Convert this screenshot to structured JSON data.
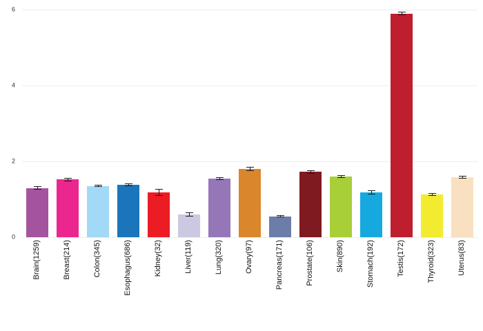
{
  "chart_data": {
    "type": "bar",
    "title": "",
    "xlabel": "",
    "ylabel": "",
    "ylim": [
      0,
      6
    ],
    "yticks": [
      0,
      2,
      4,
      6
    ],
    "grid": true,
    "legend": false,
    "error_bars": true,
    "error_color": "#1a1a1a",
    "categories": [
      "Brain(1259)",
      "Breast(214)",
      "Colon(345)",
      "Esophagus(686)",
      "Kidney(32)",
      "Liver(119)",
      "Lung(320)",
      "Ovary(97)",
      "Pancreas(171)",
      "Prostate(106)",
      "Skin(890)",
      "Stomach(192)",
      "Testis(172)",
      "Thyroid(323)",
      "Uterus(83)"
    ],
    "values": [
      1.3,
      1.52,
      1.35,
      1.38,
      1.18,
      0.6,
      1.55,
      1.8,
      0.55,
      1.72,
      1.6,
      1.18,
      5.9,
      1.13,
      1.58
    ],
    "errors": [
      0.04,
      0.04,
      0.03,
      0.03,
      0.09,
      0.05,
      0.04,
      0.05,
      0.03,
      0.04,
      0.03,
      0.06,
      0.05,
      0.04,
      0.04
    ],
    "colors": [
      "#A4539E",
      "#EC268F",
      "#A2D9F7",
      "#1B75BB",
      "#EC1C24",
      "#CBC9E1",
      "#9577B8",
      "#D9862C",
      "#6B7DA8",
      "#7F1A20",
      "#A8CE38",
      "#15A9E0",
      "#BE1E2D",
      "#F2EB30",
      "#F8E0C0"
    ]
  }
}
